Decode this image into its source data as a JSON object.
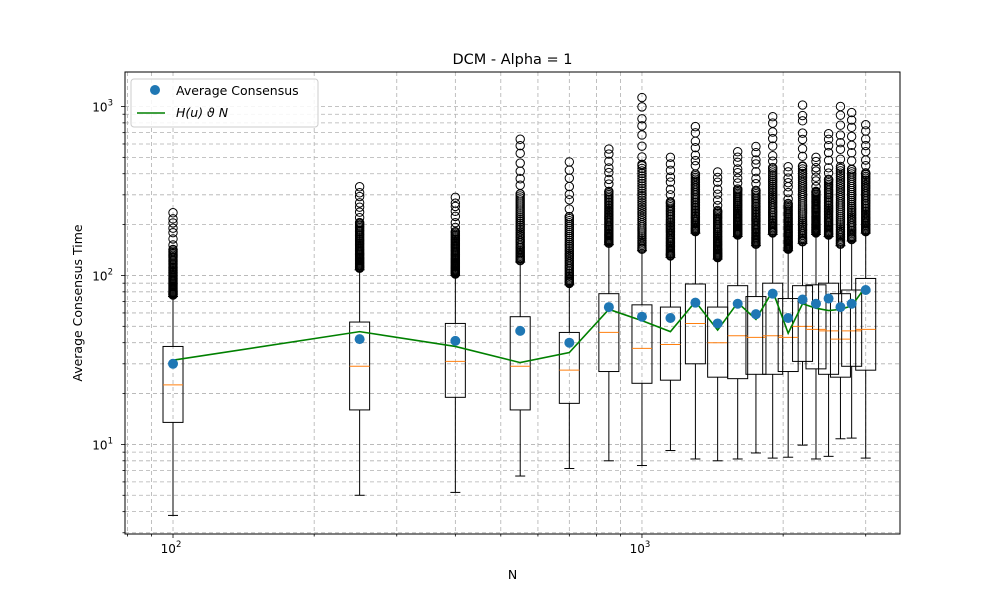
{
  "chart_data": {
    "type": "box",
    "title": "DCM - Alpha = 1",
    "xlabel": "N",
    "ylabel": "Average Consensus Time",
    "xscale": "log",
    "yscale": "log",
    "xlim": [
      79,
      3550
    ],
    "ylim": [
      2.95,
      1600
    ],
    "grid": true,
    "legend_position": "top-left",
    "x_major_ticks": [
      {
        "value": 100,
        "base": "10",
        "exp": "2"
      },
      {
        "value": 1000,
        "base": "10",
        "exp": "3"
      }
    ],
    "y_major_ticks": [
      {
        "value": 10,
        "base": "10",
        "exp": "1"
      },
      {
        "value": 100,
        "base": "10",
        "exp": "2"
      },
      {
        "value": 1000,
        "base": "10",
        "exp": "3"
      }
    ],
    "legend": [
      {
        "label": "Average Consensus",
        "marker": "circle"
      },
      {
        "label": "H(u) ϑ N",
        "marker": "line"
      }
    ],
    "colors": {
      "average_point": "#1f77b4",
      "fit_line": "#008000",
      "median": "#ff7f0e",
      "box": "#000000",
      "grid": "#b0b0b0"
    },
    "boxes": [
      {
        "n": 100,
        "whisker_low": 3.8,
        "q1": 13.5,
        "median": 22.5,
        "q3": 38,
        "whisker_high": 75,
        "outlier_max": 235
      },
      {
        "n": 250,
        "whisker_low": 5.0,
        "q1": 16,
        "median": 29,
        "q3": 53,
        "whisker_high": 108,
        "outlier_max": 335
      },
      {
        "n": 400,
        "whisker_low": 5.2,
        "q1": 19,
        "median": 31,
        "q3": 52,
        "whisker_high": 100,
        "outlier_max": 290
      },
      {
        "n": 550,
        "whisker_low": 6.5,
        "q1": 16,
        "median": 29,
        "q3": 57,
        "whisker_high": 120,
        "outlier_max": 640
      },
      {
        "n": 700,
        "whisker_low": 7.2,
        "q1": 17.5,
        "median": 27.5,
        "q3": 46,
        "whisker_high": 88,
        "outlier_max": 470
      },
      {
        "n": 850,
        "whisker_low": 8.0,
        "q1": 27,
        "median": 46,
        "q3": 78,
        "whisker_high": 152,
        "outlier_max": 560
      },
      {
        "n": 1000,
        "whisker_low": 7.5,
        "q1": 23,
        "median": 37,
        "q3": 67,
        "whisker_high": 140,
        "outlier_max": 1130
      },
      {
        "n": 1150,
        "whisker_low": 9.2,
        "q1": 24,
        "median": 39,
        "q3": 65,
        "whisker_high": 128,
        "outlier_max": 500
      },
      {
        "n": 1300,
        "whisker_low": 8.2,
        "q1": 30,
        "median": 52,
        "q3": 89,
        "whisker_high": 178,
        "outlier_max": 760
      },
      {
        "n": 1450,
        "whisker_low": 8.0,
        "q1": 25,
        "median": 40,
        "q3": 65,
        "whisker_high": 125,
        "outlier_max": 410
      },
      {
        "n": 1600,
        "whisker_low": 8.2,
        "q1": 24.5,
        "median": 44,
        "q3": 87,
        "whisker_high": 170,
        "outlier_max": 540
      },
      {
        "n": 1750,
        "whisker_low": 8.9,
        "q1": 26,
        "median": 43,
        "q3": 75,
        "whisker_high": 150,
        "outlier_max": 580
      },
      {
        "n": 1900,
        "whisker_low": 8.3,
        "q1": 26,
        "median": 44,
        "q3": 90,
        "whisker_high": 175,
        "outlier_max": 870
      },
      {
        "n": 2050,
        "whisker_low": 8.4,
        "q1": 27,
        "median": 43,
        "q3": 73,
        "whisker_high": 140,
        "outlier_max": 440
      },
      {
        "n": 2200,
        "whisker_low": 9.9,
        "q1": 31,
        "median": 50,
        "q3": 87,
        "whisker_high": 155,
        "outlier_max": 1020
      },
      {
        "n": 2350,
        "whisker_low": 8.2,
        "q1": 28,
        "median": 48,
        "q3": 88,
        "whisker_high": 175,
        "outlier_max": 500
      },
      {
        "n": 2500,
        "whisker_low": 8.5,
        "q1": 26,
        "median": 47,
        "q3": 90,
        "whisker_high": 170,
        "outlier_max": 690
      },
      {
        "n": 2650,
        "whisker_low": 10.8,
        "q1": 25,
        "median": 42,
        "q3": 78,
        "whisker_high": 150,
        "outlier_max": 1000
      },
      {
        "n": 2800,
        "whisker_low": 10.9,
        "q1": 29,
        "median": 47,
        "q3": 82,
        "whisker_high": 160,
        "outlier_max": 920
      },
      {
        "n": 3000,
        "whisker_low": 8.3,
        "q1": 27.5,
        "median": 48,
        "q3": 96,
        "whisker_high": 178,
        "outlier_max": 780
      }
    ],
    "series": [
      {
        "name": "Average Consensus",
        "x": [
          100,
          250,
          400,
          550,
          700,
          850,
          1000,
          1150,
          1300,
          1450,
          1600,
          1750,
          1900,
          2050,
          2200,
          2350,
          2500,
          2650,
          2800,
          3000
        ],
        "y": [
          30,
          42,
          41,
          47,
          40,
          65,
          57,
          56,
          69,
          52,
          68,
          59,
          78,
          56,
          72,
          68,
          73,
          65,
          68,
          82
        ]
      },
      {
        "name": "H(u) ϑ N",
        "x": [
          100,
          250,
          400,
          550,
          700,
          850,
          1000,
          1150,
          1300,
          1450,
          1600,
          1750,
          1900,
          2050,
          2200,
          2350,
          2500,
          2650,
          2800,
          3000
        ],
        "y": [
          31.5,
          46.5,
          38,
          30.5,
          35,
          63,
          54,
          46.5,
          70,
          47.5,
          69,
          55,
          81,
          45.5,
          68,
          64,
          62,
          63,
          66,
          86
        ]
      }
    ]
  }
}
